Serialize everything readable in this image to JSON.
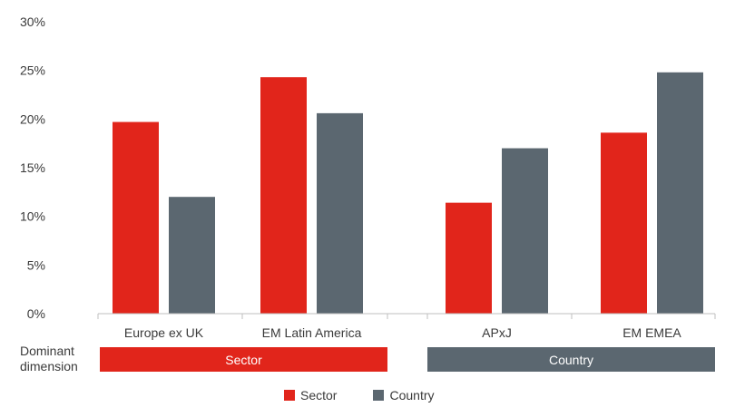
{
  "chart_data": {
    "type": "bar",
    "categories": [
      "Europe ex UK",
      "EM Latin America",
      "APxJ",
      "EM EMEA"
    ],
    "series": [
      {
        "name": "Sector",
        "color": "#e1251b",
        "values": [
          19.7,
          24.3,
          11.4,
          18.6
        ]
      },
      {
        "name": "Country",
        "color": "#5b6770",
        "values": [
          12.0,
          20.6,
          17.0,
          24.8
        ]
      }
    ],
    "yticks": [
      "0%",
      "5%",
      "10%",
      "15%",
      "20%",
      "25%",
      "30%"
    ],
    "ylim": [
      0,
      30
    ],
    "grid": false,
    "legend_placement": "bottom-center"
  },
  "dominant_dimension": {
    "label_line1": "Dominant",
    "label_line2": "dimension",
    "groups": [
      {
        "label": "Sector",
        "color": "#e1251b"
      },
      {
        "label": "Country",
        "color": "#5b6770"
      }
    ]
  },
  "legend": {
    "items": [
      {
        "label": "Sector",
        "color": "#e1251b"
      },
      {
        "label": "Country",
        "color": "#5b6770"
      }
    ]
  }
}
